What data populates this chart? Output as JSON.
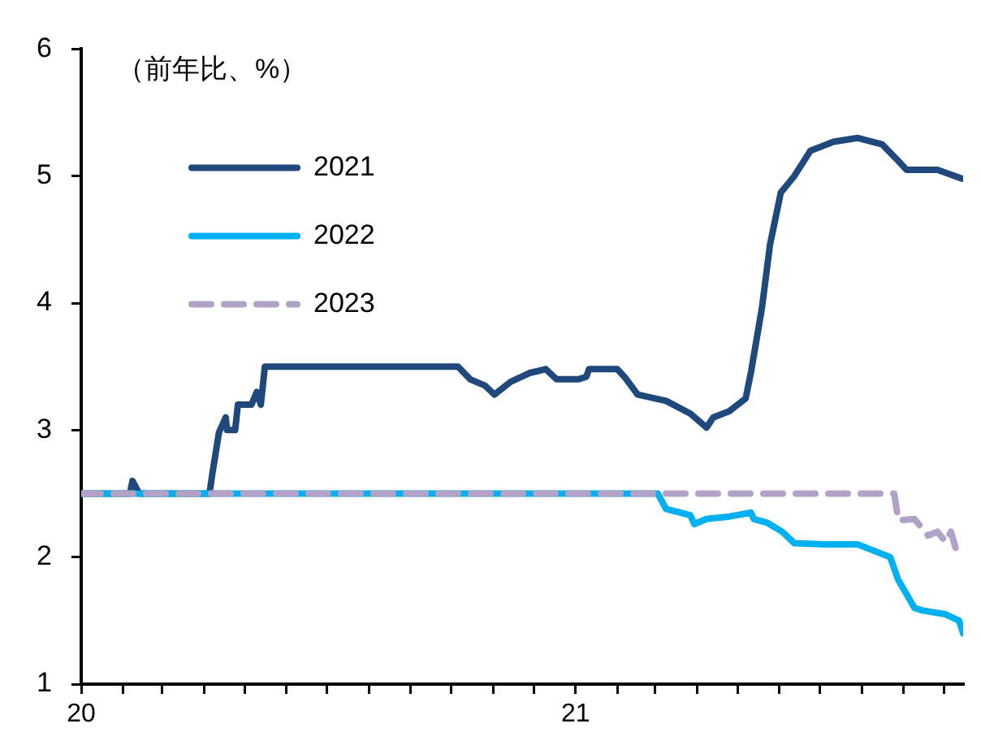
{
  "chart_data": {
    "type": "line",
    "ylabel": "（前年比、%）",
    "xlim": [
      "2020-01-01",
      "2021-10-15"
    ],
    "ylim": [
      1,
      6
    ],
    "yticks": [
      1,
      2,
      3,
      4,
      5,
      6
    ],
    "xticks": [
      {
        "value": "2020-01-01",
        "label": "20"
      },
      {
        "value": "2020-02-01",
        "label": null
      },
      {
        "value": "2020-03-01",
        "label": null
      },
      {
        "value": "2020-04-01",
        "label": null
      },
      {
        "value": "2020-05-01",
        "label": null
      },
      {
        "value": "2020-06-01",
        "label": null
      },
      {
        "value": "2020-07-01",
        "label": null
      },
      {
        "value": "2020-08-01",
        "label": null
      },
      {
        "value": "2020-09-01",
        "label": null
      },
      {
        "value": "2020-10-01",
        "label": null
      },
      {
        "value": "2020-11-01",
        "label": null
      },
      {
        "value": "2020-12-01",
        "label": null
      },
      {
        "value": "2021-01-01",
        "label": "21"
      },
      {
        "value": "2021-02-01",
        "label": null
      },
      {
        "value": "2021-03-01",
        "label": null
      },
      {
        "value": "2021-04-01",
        "label": null
      },
      {
        "value": "2021-05-01",
        "label": null
      },
      {
        "value": "2021-06-01",
        "label": null
      },
      {
        "value": "2021-07-01",
        "label": null
      },
      {
        "value": "2021-08-01",
        "label": null
      },
      {
        "value": "2021-09-01",
        "label": null
      },
      {
        "value": "2021-10-01",
        "label": null
      }
    ],
    "grid": false,
    "legend": "top left",
    "marker": "none",
    "series": [
      {
        "name": "2021",
        "color": "#1f497d",
        "line_style": "solid",
        "x": [
          "2020-01-01",
          "2020-02-06",
          "2020-02-08",
          "2020-02-13",
          "2020-04-05",
          "2020-04-07",
          "2020-04-12",
          "2020-04-17",
          "2020-04-18",
          "2020-04-24",
          "2020-04-26",
          "2020-05-06",
          "2020-05-10",
          "2020-05-13",
          "2020-05-16",
          "2020-10-06",
          "2020-10-15",
          "2020-10-26",
          "2020-11-02",
          "2020-11-14",
          "2020-11-28",
          "2020-12-10",
          "2020-12-18",
          "2021-01-03",
          "2021-01-09",
          "2021-01-11",
          "2021-02-01",
          "2021-02-07",
          "2021-02-16",
          "2021-03-09",
          "2021-03-27",
          "2021-04-08",
          "2021-04-13",
          "2021-04-25",
          "2021-05-07",
          "2021-05-11",
          "2021-05-19",
          "2021-05-25",
          "2021-06-02",
          "2021-06-12",
          "2021-06-24",
          "2021-07-11",
          "2021-07-29",
          "2021-08-16",
          "2021-08-28",
          "2021-09-03",
          "2021-09-26",
          "2021-10-14"
        ],
        "values": [
          2.5,
          2.5,
          2.6,
          2.5,
          2.5,
          2.65,
          2.98,
          3.1,
          3.0,
          3.0,
          3.2,
          3.2,
          3.3,
          3.2,
          3.5,
          3.5,
          3.4,
          3.35,
          3.28,
          3.38,
          3.45,
          3.48,
          3.4,
          3.4,
          3.42,
          3.48,
          3.48,
          3.41,
          3.28,
          3.23,
          3.13,
          3.02,
          3.1,
          3.15,
          3.25,
          3.46,
          3.96,
          4.46,
          4.87,
          5.0,
          5.2,
          5.27,
          5.3,
          5.25,
          5.12,
          5.05,
          5.05,
          4.98
        ]
      },
      {
        "name": "2022",
        "color": "#00b0f0",
        "line_style": "solid",
        "x": [
          "2020-01-01",
          "2021-03-03",
          "2021-03-09",
          "2021-03-27",
          "2021-03-30",
          "2021-04-08",
          "2021-04-25",
          "2021-05-11",
          "2021-05-13",
          "2021-05-23",
          "2021-06-03",
          "2021-06-12",
          "2021-07-05",
          "2021-07-29",
          "2021-08-10",
          "2021-08-22",
          "2021-08-28",
          "2021-09-09",
          "2021-09-15",
          "2021-10-02",
          "2021-10-12",
          "2021-10-15"
        ],
        "values": [
          2.5,
          2.5,
          2.38,
          2.33,
          2.26,
          2.3,
          2.32,
          2.35,
          2.3,
          2.27,
          2.2,
          2.11,
          2.1,
          2.1,
          2.05,
          2.0,
          1.82,
          1.6,
          1.58,
          1.55,
          1.5,
          1.4
        ]
      },
      {
        "name": "2023",
        "color": "#b3a2c7",
        "line_style": "dashed",
        "x": [
          "2020-01-01",
          "2021-08-25",
          "2021-08-28",
          "2021-09-09",
          "2021-09-19",
          "2021-09-26",
          "2021-10-02",
          "2021-10-06",
          "2021-10-10",
          "2021-10-14"
        ],
        "values": [
          2.5,
          2.5,
          2.29,
          2.3,
          2.17,
          2.2,
          2.12,
          2.2,
          2.05,
          2.02
        ]
      }
    ]
  }
}
